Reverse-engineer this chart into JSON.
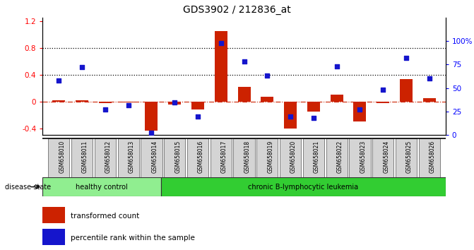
{
  "title": "GDS3902 / 212836_at",
  "samples": [
    "GSM658010",
    "GSM658011",
    "GSM658012",
    "GSM658013",
    "GSM658014",
    "GSM658015",
    "GSM658016",
    "GSM658017",
    "GSM658018",
    "GSM658019",
    "GSM658020",
    "GSM658021",
    "GSM658022",
    "GSM658023",
    "GSM658024",
    "GSM658025",
    "GSM658026"
  ],
  "bar_values": [
    0.02,
    0.02,
    -0.02,
    -0.01,
    -0.44,
    -0.05,
    -0.12,
    1.05,
    0.22,
    0.07,
    -0.4,
    -0.15,
    0.1,
    -0.3,
    -0.02,
    0.33,
    0.05
  ],
  "dot_percentile": [
    58,
    72,
    27,
    32,
    2,
    35,
    20,
    98,
    78,
    63,
    20,
    18,
    73,
    27,
    48,
    82,
    60
  ],
  "healthy_count": 5,
  "healthy_color": "#90EE90",
  "leukemia_color": "#32CD32",
  "bar_color": "#CC2200",
  "dot_color": "#1515CC",
  "ylim_left": [
    -0.5,
    1.25
  ],
  "ylim_right": [
    0,
    125
  ],
  "yticks_left": [
    -0.4,
    0.0,
    0.4,
    0.8,
    1.2
  ],
  "yticks_right": [
    0,
    25,
    50,
    75,
    100
  ],
  "hline_values": [
    0.4,
    0.8
  ],
  "background_color": "#ffffff"
}
